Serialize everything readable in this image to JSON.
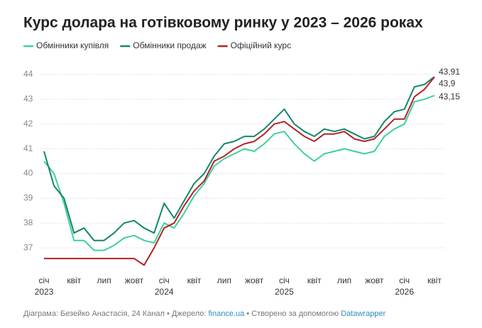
{
  "chart_data": {
    "type": "line",
    "title": "Курс долара на готівковому ринку у 2023 – 2026 роках",
    "categories": [
      "січ",
      null,
      null,
      "квіт",
      null,
      null,
      "лип",
      null,
      null,
      "жовт",
      null,
      null,
      "січ",
      null,
      null,
      "квіт",
      null,
      null,
      "лип",
      null,
      null,
      "жовт",
      null,
      null,
      "січ",
      null,
      null,
      "квіт",
      null,
      null,
      "лип",
      null,
      null,
      "жовт",
      null,
      null,
      "січ",
      null,
      null,
      "квіт"
    ],
    "years": [
      "2023",
      null,
      null,
      null,
      null,
      null,
      null,
      null,
      null,
      null,
      null,
      null,
      "2024",
      null,
      null,
      null,
      null,
      null,
      null,
      null,
      null,
      null,
      null,
      null,
      "2025",
      null,
      null,
      null,
      null,
      null,
      null,
      null,
      null,
      null,
      null,
      null,
      "2026",
      null,
      null,
      null
    ],
    "series": [
      {
        "name": "Обмінники купівля",
        "color": "#3fcf9f",
        "values": [
          40.5,
          40.0,
          38.8,
          37.3,
          37.3,
          36.9,
          36.9,
          37.1,
          37.4,
          37.5,
          37.3,
          37.2,
          38.0,
          37.8,
          38.4,
          39.1,
          39.6,
          40.3,
          40.6,
          40.8,
          41.0,
          40.9,
          41.2,
          41.6,
          41.7,
          41.2,
          40.8,
          40.5,
          40.8,
          40.9,
          41.0,
          40.9,
          40.8,
          40.9,
          41.5,
          41.8,
          42.0,
          42.9,
          43.0,
          43.15
        ],
        "value_labels": [
          null,
          null,
          null,
          null,
          null,
          null,
          null,
          null,
          null,
          null,
          null,
          null,
          null,
          null,
          null,
          null,
          null,
          null,
          null,
          null,
          null,
          null,
          null,
          null,
          null,
          null,
          null,
          null,
          null,
          null,
          null,
          null,
          null,
          null,
          null,
          null,
          null,
          null,
          null,
          "43,15"
        ]
      },
      {
        "name": "Обмінники продаж",
        "color": "#13876a",
        "values": [
          40.9,
          39.5,
          39.0,
          37.6,
          37.8,
          37.3,
          37.3,
          37.6,
          38.0,
          38.1,
          37.8,
          37.6,
          38.8,
          38.2,
          38.9,
          39.6,
          40.0,
          40.7,
          41.2,
          41.3,
          41.5,
          41.5,
          41.8,
          42.2,
          42.6,
          42.0,
          41.7,
          41.5,
          41.8,
          41.7,
          41.8,
          41.6,
          41.4,
          41.5,
          42.1,
          42.5,
          42.6,
          43.5,
          43.6,
          43.91
        ],
        "value_labels": [
          null,
          null,
          null,
          null,
          null,
          null,
          null,
          null,
          null,
          null,
          null,
          null,
          null,
          null,
          null,
          null,
          null,
          null,
          null,
          null,
          null,
          null,
          null,
          null,
          null,
          null,
          null,
          null,
          null,
          null,
          null,
          null,
          null,
          null,
          null,
          null,
          null,
          null,
          null,
          "43,91"
        ]
      },
      {
        "name": "Офіційний курс",
        "color": "#b52226",
        "values": [
          36.57,
          36.57,
          36.57,
          36.57,
          36.57,
          36.57,
          36.57,
          36.57,
          36.57,
          36.57,
          36.3,
          37.0,
          37.8,
          38.0,
          38.7,
          39.3,
          39.7,
          40.5,
          40.7,
          41.0,
          41.2,
          41.3,
          41.6,
          42.0,
          42.1,
          41.8,
          41.5,
          41.3,
          41.6,
          41.6,
          41.7,
          41.4,
          41.3,
          41.4,
          41.8,
          42.2,
          42.2,
          43.1,
          43.4,
          43.9
        ],
        "value_labels": [
          null,
          null,
          null,
          null,
          null,
          null,
          null,
          null,
          null,
          null,
          null,
          null,
          null,
          null,
          null,
          null,
          null,
          null,
          null,
          null,
          null,
          null,
          null,
          null,
          null,
          null,
          null,
          null,
          null,
          null,
          null,
          null,
          null,
          null,
          null,
          null,
          null,
          null,
          null,
          "43,9"
        ]
      }
    ],
    "ylim": [
      36,
      44.6
    ],
    "yticks": [
      37,
      38,
      39,
      40,
      41,
      42,
      43,
      44
    ],
    "grid": true,
    "legend": "top",
    "footer": {
      "credit": "Діаграма: Безейко Анастасія, 24 Канал • Джерело: ",
      "source": "finance.ua",
      "made_with": " • Створено за допомогою ",
      "tool": "Datawrapper"
    }
  }
}
